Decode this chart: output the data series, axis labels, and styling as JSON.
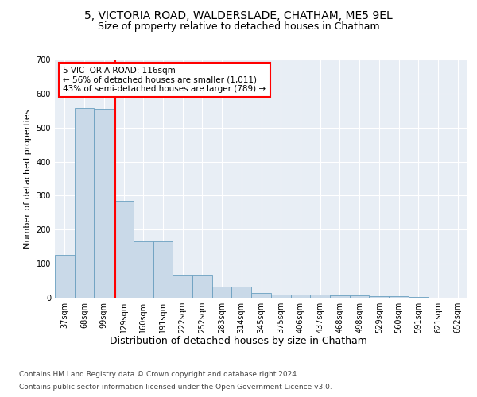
{
  "title1": "5, VICTORIA ROAD, WALDERSLADE, CHATHAM, ME5 9EL",
  "title2": "Size of property relative to detached houses in Chatham",
  "xlabel": "Distribution of detached houses by size in Chatham",
  "ylabel": "Number of detached properties",
  "categories": [
    "37sqm",
    "68sqm",
    "99sqm",
    "129sqm",
    "160sqm",
    "191sqm",
    "222sqm",
    "252sqm",
    "283sqm",
    "314sqm",
    "345sqm",
    "375sqm",
    "406sqm",
    "437sqm",
    "468sqm",
    "498sqm",
    "529sqm",
    "560sqm",
    "591sqm",
    "621sqm",
    "652sqm"
  ],
  "values": [
    127,
    558,
    555,
    285,
    165,
    165,
    68,
    68,
    32,
    32,
    15,
    10,
    10,
    10,
    8,
    8,
    5,
    5,
    2,
    0,
    0
  ],
  "bar_color": "#c9d9e8",
  "bar_edge_color": "#6a9fc0",
  "vline_color": "red",
  "annotation_text": "5 VICTORIA ROAD: 116sqm\n← 56% of detached houses are smaller (1,011)\n43% of semi-detached houses are larger (789) →",
  "annotation_box_color": "white",
  "annotation_box_edge": "red",
  "ylim": [
    0,
    700
  ],
  "yticks": [
    0,
    100,
    200,
    300,
    400,
    500,
    600,
    700
  ],
  "background_color": "#e8eef5",
  "footer1": "Contains HM Land Registry data © Crown copyright and database right 2024.",
  "footer2": "Contains public sector information licensed under the Open Government Licence v3.0.",
  "title1_fontsize": 10,
  "title2_fontsize": 9,
  "xlabel_fontsize": 9,
  "ylabel_fontsize": 8,
  "tick_fontsize": 7,
  "annotation_fontsize": 7.5,
  "footer_fontsize": 6.5
}
